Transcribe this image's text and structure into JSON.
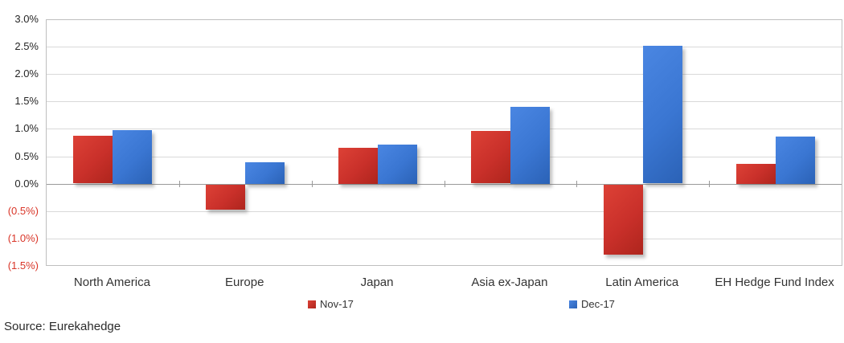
{
  "chart_data": {
    "type": "bar",
    "title": "",
    "xlabel": "",
    "ylabel": "",
    "categories": [
      "North America",
      "Europe",
      "Japan",
      "Asia ex-Japan",
      "Latin America",
      "EH Hedge Fund Index"
    ],
    "series": [
      {
        "name": "Nov-17",
        "color": "#c9302a",
        "color_light": "#dd4136",
        "color_dark": "#ae251d",
        "values": [
          0.87,
          -0.45,
          0.66,
          0.96,
          -1.27,
          0.36
        ]
      },
      {
        "name": "Dec-17",
        "color": "#3a76d2",
        "color_light": "#4a86e2",
        "color_dark": "#2b62b6",
        "values": [
          0.98,
          0.39,
          0.72,
          1.4,
          2.51,
          0.86
        ]
      }
    ],
    "ylim": [
      -1.5,
      3.0
    ],
    "ytick_step": 0.5,
    "ytick_labels": [
      "3.0%",
      "2.5%",
      "2.0%",
      "1.5%",
      "1.0%",
      "0.5%",
      "0.0%",
      "(0.5%)",
      "(1.0%)",
      "(1.5%)"
    ],
    "grid": true,
    "legend_position": "bottom"
  },
  "colors": {
    "positive_tick_label": "#262626",
    "negative_tick_label": "#d93528",
    "gridline": "#d9d9d9",
    "axis_line": "#999999"
  },
  "source_note": "Source: Eurekahedge"
}
